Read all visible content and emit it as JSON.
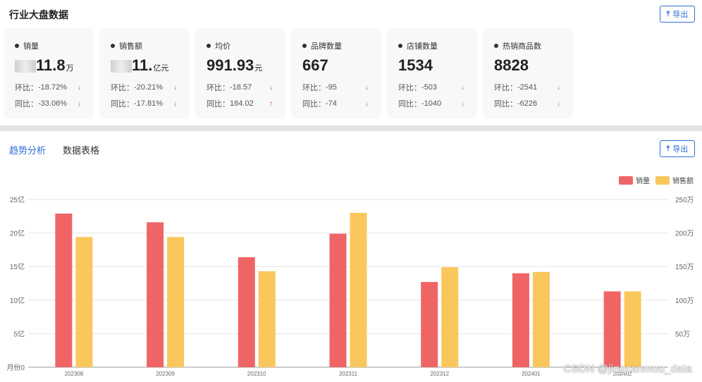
{
  "header": {
    "title": "行业大盘数据",
    "export_label": "导出"
  },
  "cards": [
    {
      "name": "销量",
      "value": "11.8",
      "unit": "万",
      "partially_obscured": true,
      "mom_label": "环比：",
      "mom": "-18.72%",
      "mom_dir": "down",
      "yoy_label": "同比：",
      "yoy": "-33.06%",
      "yoy_dir": "down"
    },
    {
      "name": "销售额",
      "value": "11.",
      "unit": "亿元",
      "partially_obscured": true,
      "mom_label": "环比：",
      "mom": "-20.21%",
      "mom_dir": "down",
      "yoy_label": "同比：",
      "yoy": "-17.81%",
      "yoy_dir": "down"
    },
    {
      "name": "均价",
      "value": "991.93",
      "unit": "元",
      "mom_label": "环比：",
      "mom": "-18.57",
      "mom_dir": "down",
      "yoy_label": "同比：",
      "yoy": "184.02",
      "yoy_dir": "up"
    },
    {
      "name": "品牌数量",
      "value": "667",
      "unit": "",
      "mom_label": "环比：",
      "mom": "-95",
      "mom_dir": "down",
      "yoy_label": "同比：",
      "yoy": "-74",
      "yoy_dir": "down"
    },
    {
      "name": "店铺数量",
      "value": "1534",
      "unit": "",
      "mom_label": "环比：",
      "mom": "-503",
      "mom_dir": "down",
      "yoy_label": "同比：",
      "yoy": "-1040",
      "yoy_dir": "down"
    },
    {
      "name": "热销商品数",
      "value": "8828",
      "unit": "",
      "mom_label": "环比：",
      "mom": "-2541",
      "mom_dir": "down",
      "yoy_label": "同比：",
      "yoy": "-6226",
      "yoy_dir": "down"
    }
  ],
  "trend": {
    "tabs": [
      "趋势分析",
      "数据表格"
    ],
    "active_tab": 0,
    "export_label": "导出"
  },
  "colors": {
    "accent": "#2f6fd6",
    "series_sales_volume": "#ef6566",
    "series_sales_amount": "#f9c75c"
  },
  "chart_data": {
    "type": "bar",
    "categories": [
      "202308",
      "202309",
      "202310",
      "202311",
      "202312",
      "202401",
      "202402"
    ],
    "series": [
      {
        "name": "销量",
        "axis": "right",
        "values": [
          229,
          216,
          164,
          199,
          127,
          140,
          113
        ]
      },
      {
        "name": "销售额",
        "axis": "left",
        "values": [
          19.4,
          19.4,
          14.3,
          23.0,
          14.9,
          14.2,
          11.3
        ]
      }
    ],
    "left_axis": {
      "ticks": [
        "月份0",
        "5亿",
        "10亿",
        "15亿",
        "20亿",
        "25亿"
      ],
      "ylim": [
        0,
        25
      ]
    },
    "right_axis": {
      "ticks": [
        "",
        "50万",
        "100万",
        "150万",
        "200万",
        "250万"
      ],
      "ylim": [
        0,
        250
      ]
    },
    "legend_position": "top-right",
    "grid": true
  },
  "watermark": "CSDN @jingcanmou_data"
}
